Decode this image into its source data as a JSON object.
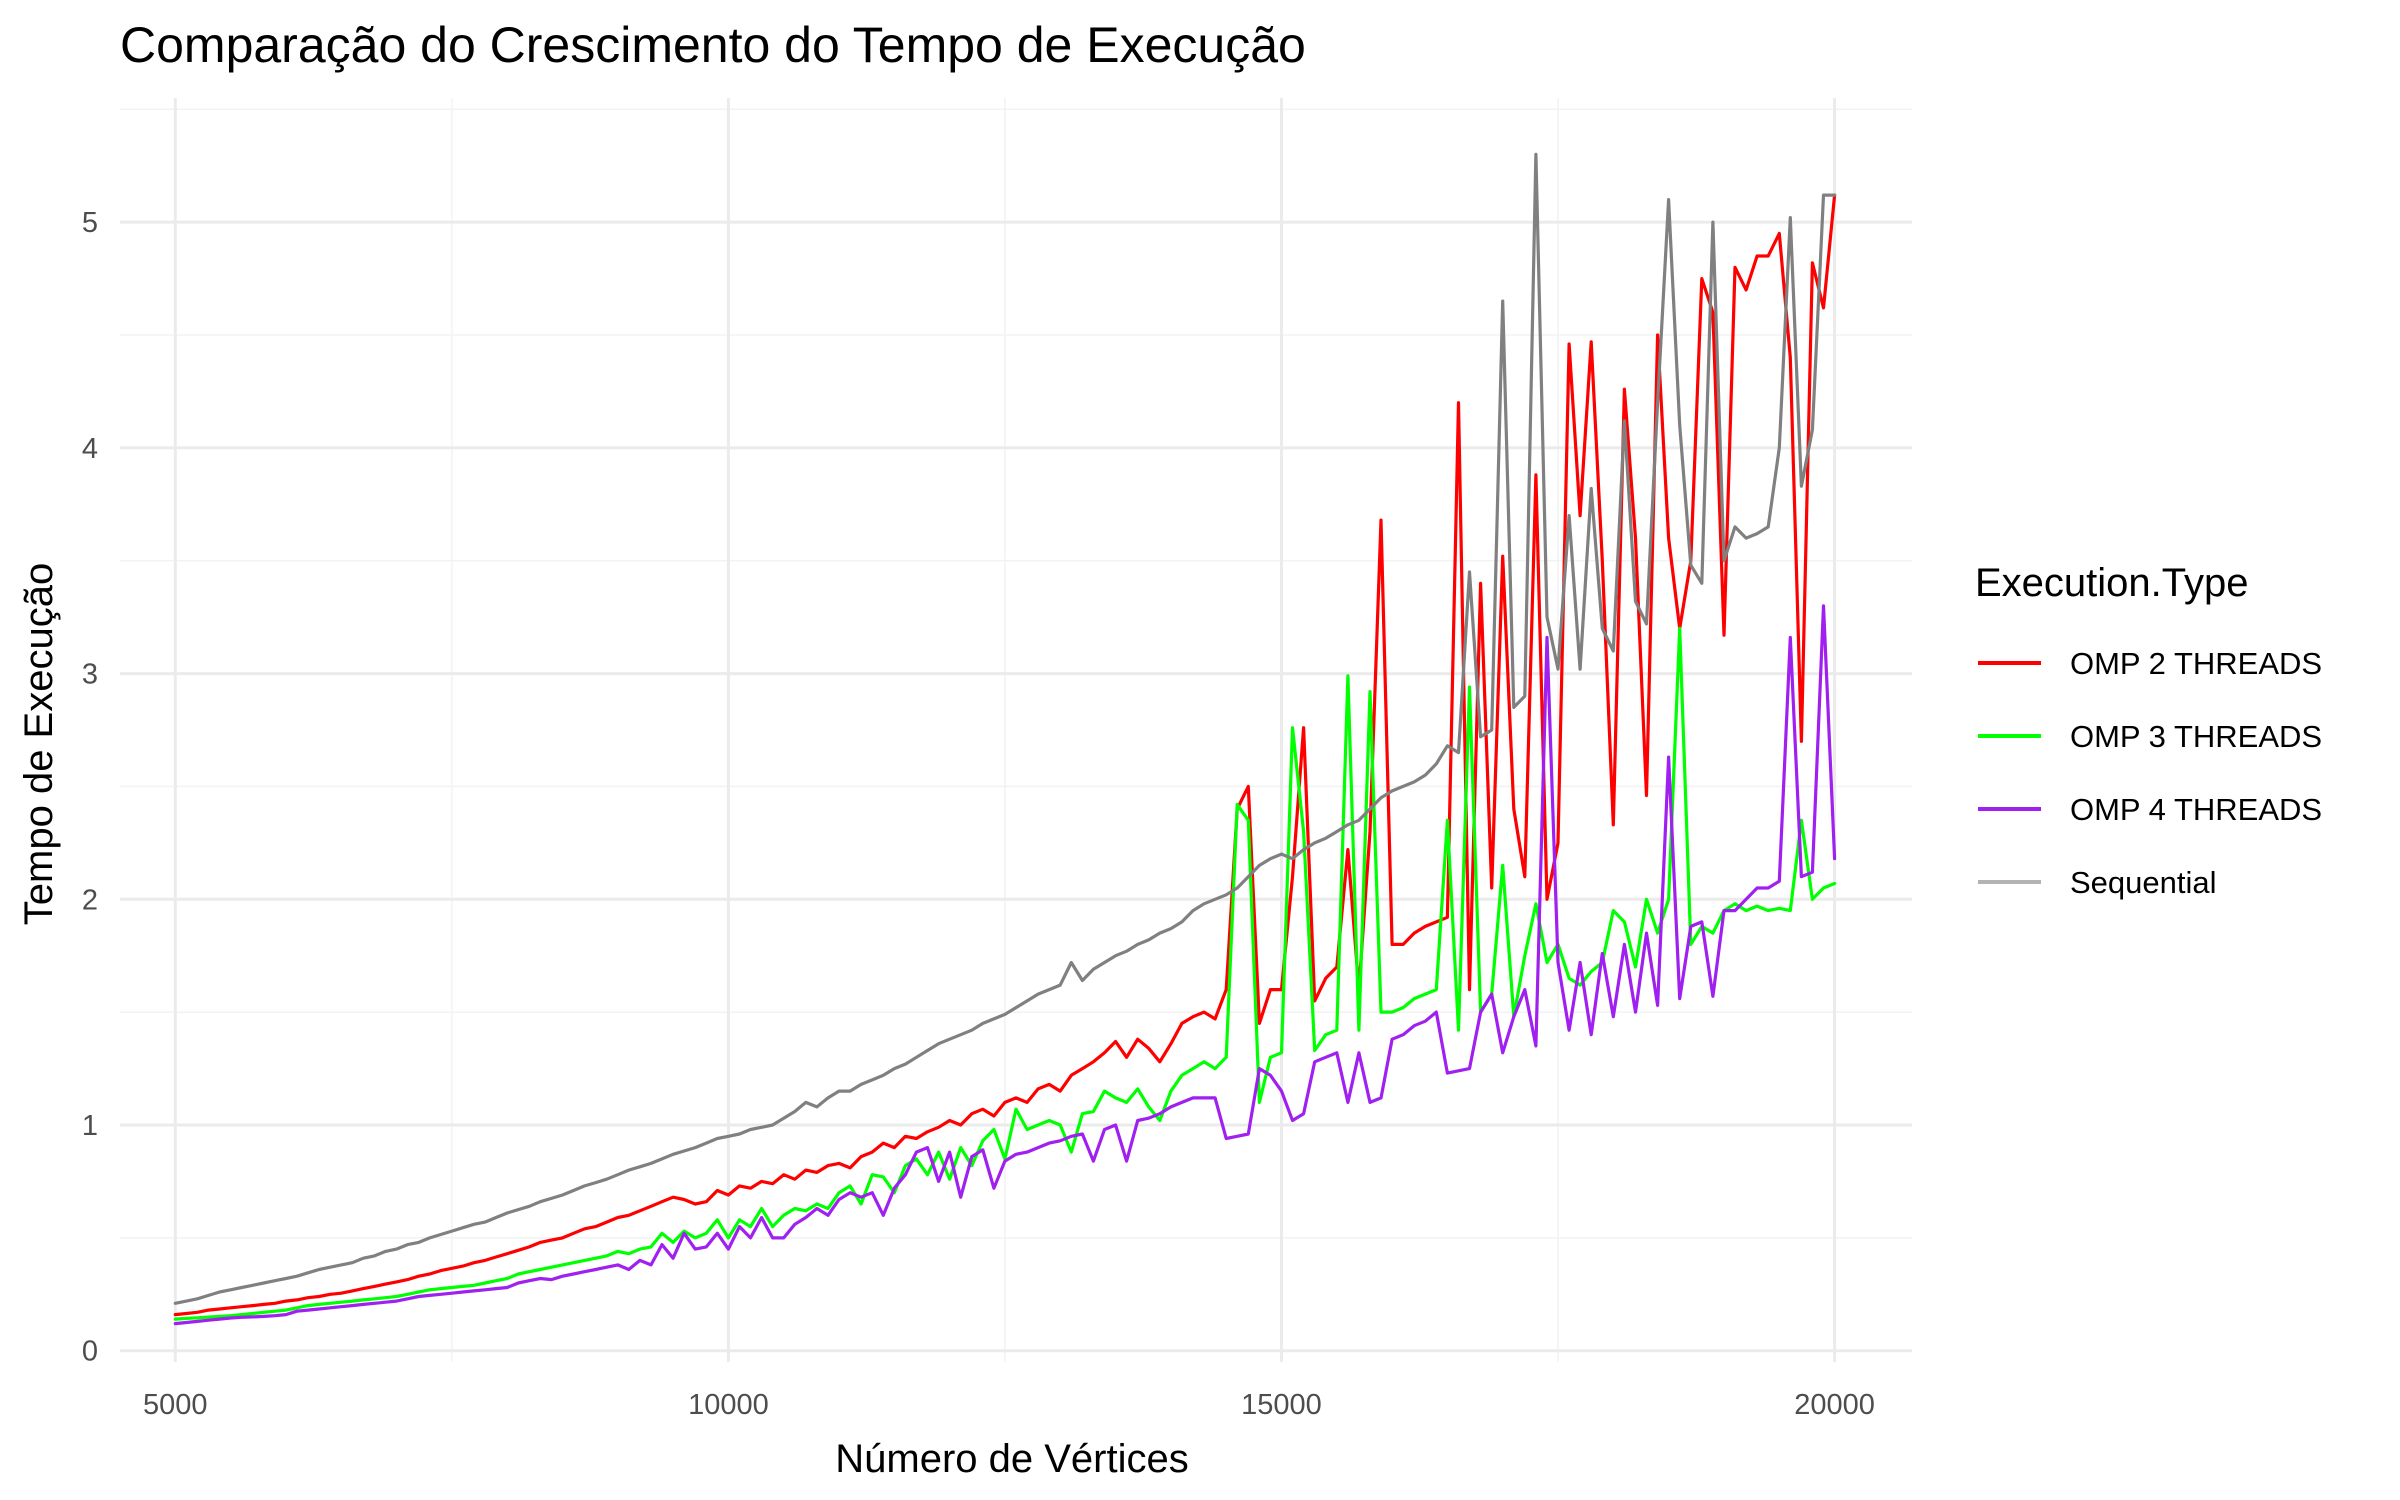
{
  "chart_data": {
    "type": "line",
    "title": "Comparação do Crescimento do Tempo de Execução",
    "xlabel": "Número de Vértices",
    "ylabel": "Tempo de Execução",
    "xlim": [
      4500,
      20700
    ],
    "ylim": [
      -0.05,
      5.55
    ],
    "x_ticks": [
      5000,
      10000,
      15000,
      20000
    ],
    "x_tick_labels": [
      "5000",
      "10000",
      "15000",
      "20000"
    ],
    "y_ticks": [
      0,
      1,
      2,
      3,
      4,
      5
    ],
    "y_tick_labels": [
      "0",
      "1",
      "2",
      "3",
      "4",
      "5"
    ],
    "grid": true,
    "legend": {
      "title": "Execution.Type",
      "position": "right"
    },
    "x": [
      5000,
      5100,
      5200,
      5300,
      5400,
      5500,
      5600,
      5700,
      5800,
      5900,
      6000,
      6100,
      6200,
      6300,
      6400,
      6500,
      6600,
      6700,
      6800,
      6900,
      7000,
      7100,
      7200,
      7300,
      7400,
      7500,
      7600,
      7700,
      7800,
      7900,
      8000,
      8100,
      8200,
      8300,
      8400,
      8500,
      8600,
      8700,
      8800,
      8900,
      9000,
      9100,
      9200,
      9300,
      9400,
      9500,
      9600,
      9700,
      9800,
      9900,
      10000,
      10100,
      10200,
      10300,
      10400,
      10500,
      10600,
      10700,
      10800,
      10900,
      11000,
      11100,
      11200,
      11300,
      11400,
      11500,
      11600,
      11700,
      11800,
      11900,
      12000,
      12100,
      12200,
      12300,
      12400,
      12500,
      12600,
      12700,
      12800,
      12900,
      13000,
      13100,
      13200,
      13300,
      13400,
      13500,
      13600,
      13700,
      13800,
      13900,
      14000,
      14100,
      14200,
      14300,
      14400,
      14500,
      14600,
      14700,
      14800,
      14900,
      15000,
      15100,
      15200,
      15300,
      15400,
      15500,
      15600,
      15700,
      15800,
      15900,
      16000,
      16100,
      16200,
      16300,
      16400,
      16500,
      16600,
      16700,
      16800,
      16900,
      17000,
      17100,
      17200,
      17300,
      17400,
      17500,
      17600,
      17700,
      17800,
      17900,
      18000,
      18100,
      18200,
      18300,
      18400,
      18500,
      18600,
      18700,
      18800,
      18900,
      19000,
      19100,
      19200,
      19300,
      19400,
      19500,
      19600,
      19700,
      19800,
      19900,
      20000
    ],
    "series": [
      {
        "name": "OMP 2 THREADS",
        "color": "#ff0000",
        "values": [
          0.16,
          0.165,
          0.17,
          0.18,
          0.185,
          0.19,
          0.195,
          0.2,
          0.205,
          0.21,
          0.22,
          0.225,
          0.235,
          0.24,
          0.25,
          0.255,
          0.265,
          0.275,
          0.285,
          0.295,
          0.305,
          0.315,
          0.33,
          0.34,
          0.355,
          0.365,
          0.375,
          0.39,
          0.4,
          0.415,
          0.43,
          0.445,
          0.46,
          0.48,
          0.49,
          0.5,
          0.52,
          0.54,
          0.55,
          0.57,
          0.59,
          0.6,
          0.62,
          0.64,
          0.66,
          0.68,
          0.67,
          0.65,
          0.66,
          0.71,
          0.69,
          0.73,
          0.72,
          0.75,
          0.74,
          0.78,
          0.76,
          0.8,
          0.79,
          0.82,
          0.83,
          0.81,
          0.86,
          0.88,
          0.92,
          0.9,
          0.95,
          0.94,
          0.97,
          0.99,
          1.02,
          1.0,
          1.05,
          1.07,
          1.04,
          1.1,
          1.12,
          1.1,
          1.16,
          1.18,
          1.15,
          1.22,
          1.25,
          1.28,
          1.32,
          1.37,
          1.3,
          1.38,
          1.34,
          1.28,
          1.36,
          1.45,
          1.48,
          1.5,
          1.47,
          1.6,
          2.4,
          2.5,
          1.45,
          1.6,
          1.6,
          2.1,
          2.76,
          1.55,
          1.65,
          1.7,
          2.22,
          1.6,
          2.3,
          3.68,
          1.8,
          1.8,
          1.85,
          1.88,
          1.9,
          1.92,
          4.2,
          1.6,
          3.4,
          2.05,
          3.52,
          2.4,
          2.1,
          3.88,
          2.0,
          2.25,
          4.46,
          3.7,
          4.47,
          3.5,
          2.33,
          4.26,
          3.6,
          2.46,
          4.5,
          3.6,
          3.2,
          3.5,
          4.75,
          4.6,
          3.17,
          4.8,
          4.7,
          4.85,
          4.85,
          4.95,
          4.4,
          2.7,
          4.82,
          4.62,
          5.12
        ]
      },
      {
        "name": "OMP 3 THREADS",
        "color": "#00ff00",
        "values": [
          0.14,
          0.143,
          0.146,
          0.149,
          0.152,
          0.155,
          0.16,
          0.165,
          0.17,
          0.175,
          0.18,
          0.19,
          0.2,
          0.205,
          0.21,
          0.215,
          0.22,
          0.225,
          0.23,
          0.235,
          0.24,
          0.25,
          0.26,
          0.27,
          0.275,
          0.28,
          0.285,
          0.29,
          0.3,
          0.31,
          0.32,
          0.34,
          0.35,
          0.36,
          0.37,
          0.38,
          0.39,
          0.4,
          0.41,
          0.42,
          0.44,
          0.43,
          0.45,
          0.46,
          0.52,
          0.48,
          0.53,
          0.5,
          0.52,
          0.58,
          0.5,
          0.58,
          0.55,
          0.63,
          0.55,
          0.6,
          0.63,
          0.62,
          0.65,
          0.63,
          0.7,
          0.73,
          0.65,
          0.78,
          0.77,
          0.7,
          0.82,
          0.85,
          0.78,
          0.88,
          0.76,
          0.9,
          0.82,
          0.93,
          0.98,
          0.85,
          1.07,
          0.98,
          1.0,
          1.02,
          1.0,
          0.88,
          1.05,
          1.06,
          1.15,
          1.12,
          1.1,
          1.16,
          1.08,
          1.02,
          1.15,
          1.22,
          1.25,
          1.28,
          1.25,
          1.3,
          2.42,
          2.35,
          1.1,
          1.3,
          1.32,
          2.76,
          2.3,
          1.33,
          1.4,
          1.42,
          2.99,
          1.42,
          2.92,
          1.5,
          1.5,
          1.52,
          1.56,
          1.58,
          1.6,
          2.35,
          1.42,
          2.94,
          1.5,
          1.58,
          2.15,
          1.48,
          1.75,
          1.98,
          1.72,
          1.8,
          1.65,
          1.62,
          1.68,
          1.72,
          1.95,
          1.9,
          1.7,
          2.0,
          1.85,
          2.0,
          3.2,
          1.8,
          1.88,
          1.85,
          1.95,
          1.98,
          1.95,
          1.97,
          1.95,
          1.96,
          1.95,
          2.35,
          2.0,
          2.05,
          2.07
        ]
      },
      {
        "name": "OMP 4 THREADS",
        "color": "#a020f0",
        "values": [
          0.12,
          0.125,
          0.13,
          0.135,
          0.14,
          0.145,
          0.148,
          0.15,
          0.152,
          0.155,
          0.16,
          0.175,
          0.18,
          0.185,
          0.19,
          0.195,
          0.2,
          0.205,
          0.21,
          0.215,
          0.22,
          0.23,
          0.24,
          0.245,
          0.25,
          0.255,
          0.26,
          0.265,
          0.27,
          0.275,
          0.28,
          0.3,
          0.31,
          0.32,
          0.315,
          0.33,
          0.34,
          0.35,
          0.36,
          0.37,
          0.38,
          0.36,
          0.4,
          0.38,
          0.47,
          0.41,
          0.52,
          0.45,
          0.46,
          0.52,
          0.45,
          0.55,
          0.5,
          0.59,
          0.5,
          0.5,
          0.56,
          0.59,
          0.63,
          0.6,
          0.67,
          0.7,
          0.68,
          0.7,
          0.6,
          0.72,
          0.78,
          0.88,
          0.9,
          0.75,
          0.88,
          0.68,
          0.86,
          0.89,
          0.72,
          0.84,
          0.87,
          0.88,
          0.9,
          0.92,
          0.93,
          0.95,
          0.96,
          0.84,
          0.98,
          1.0,
          0.84,
          1.02,
          1.03,
          1.05,
          1.08,
          1.1,
          1.12,
          1.12,
          1.12,
          0.94,
          0.95,
          0.96,
          1.25,
          1.22,
          1.15,
          1.02,
          1.05,
          1.28,
          1.3,
          1.32,
          1.1,
          1.32,
          1.1,
          1.12,
          1.38,
          1.4,
          1.44,
          1.46,
          1.5,
          1.23,
          1.24,
          1.25,
          1.5,
          1.58,
          1.32,
          1.48,
          1.6,
          1.35,
          3.16,
          1.72,
          1.42,
          1.72,
          1.4,
          1.76,
          1.48,
          1.8,
          1.5,
          1.85,
          1.53,
          2.63,
          1.56,
          1.88,
          1.9,
          1.57,
          1.95,
          1.95,
          2.0,
          2.05,
          2.05,
          2.08,
          3.16,
          2.1,
          2.12,
          3.3,
          2.18
        ]
      },
      {
        "name": "Sequential",
        "color": "#808080",
        "values": [
          0.21,
          0.22,
          0.23,
          0.245,
          0.26,
          0.27,
          0.28,
          0.29,
          0.3,
          0.31,
          0.32,
          0.33,
          0.345,
          0.36,
          0.37,
          0.38,
          0.39,
          0.41,
          0.42,
          0.44,
          0.45,
          0.47,
          0.48,
          0.5,
          0.515,
          0.53,
          0.545,
          0.56,
          0.57,
          0.59,
          0.61,
          0.625,
          0.64,
          0.66,
          0.675,
          0.69,
          0.71,
          0.73,
          0.745,
          0.76,
          0.78,
          0.8,
          0.815,
          0.83,
          0.85,
          0.87,
          0.885,
          0.9,
          0.92,
          0.94,
          0.95,
          0.96,
          0.98,
          0.99,
          1.0,
          1.03,
          1.06,
          1.1,
          1.08,
          1.12,
          1.15,
          1.15,
          1.18,
          1.2,
          1.22,
          1.25,
          1.27,
          1.3,
          1.33,
          1.36,
          1.38,
          1.4,
          1.42,
          1.45,
          1.47,
          1.49,
          1.52,
          1.55,
          1.58,
          1.6,
          1.62,
          1.72,
          1.64,
          1.69,
          1.72,
          1.75,
          1.77,
          1.8,
          1.82,
          1.85,
          1.87,
          1.9,
          1.95,
          1.98,
          2.0,
          2.02,
          2.05,
          2.1,
          2.15,
          2.18,
          2.2,
          2.18,
          2.22,
          2.25,
          2.27,
          2.3,
          2.33,
          2.35,
          2.4,
          2.45,
          2.48,
          2.5,
          2.52,
          2.55,
          2.6,
          2.68,
          2.65,
          3.45,
          2.72,
          2.75,
          4.65,
          2.85,
          2.9,
          5.3,
          3.25,
          3.02,
          3.7,
          3.02,
          3.82,
          3.2,
          3.1,
          4.12,
          3.32,
          3.22,
          4.2,
          5.1,
          4.1,
          3.48,
          3.4,
          5.0,
          3.5,
          3.65,
          3.6,
          3.62,
          3.65,
          4.0,
          5.02,
          3.83,
          4.08,
          5.12,
          5.12
        ]
      }
    ]
  }
}
